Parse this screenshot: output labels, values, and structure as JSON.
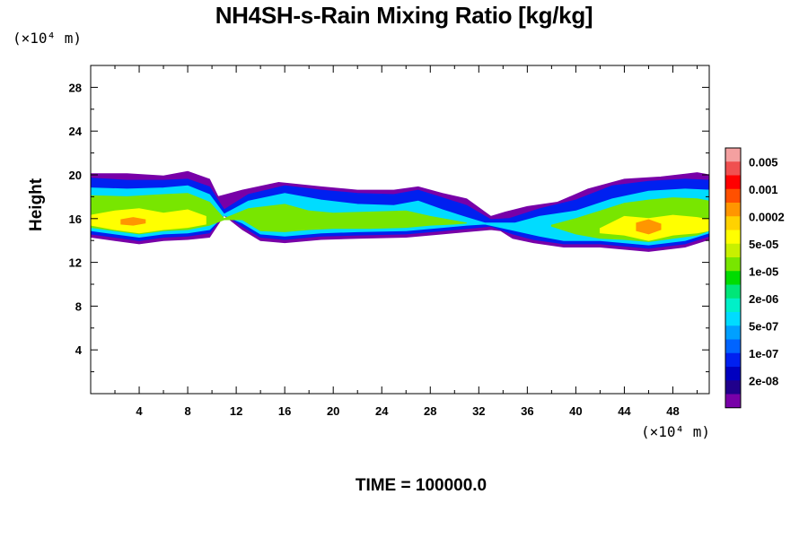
{
  "chart_data": {
    "type": "heatmap",
    "title": "NH4SH-s-Rain Mixing Ratio [kg/kg]",
    "xlabel": "",
    "ylabel": "Height",
    "x_unit_label": "(×10⁴ m)",
    "y_unit_label": "(×10⁴ m)",
    "xlim": [
      0,
      51
    ],
    "ylim": [
      0,
      30
    ],
    "x_ticks": [
      4,
      8,
      12,
      16,
      20,
      24,
      28,
      32,
      36,
      40,
      44,
      48
    ],
    "x_tick_labels": [
      "4",
      "8",
      "12",
      "16",
      "20",
      "24",
      "28",
      "32",
      "36",
      "40",
      "44",
      "48"
    ],
    "y_ticks": [
      4,
      8,
      12,
      16,
      20,
      24,
      28
    ],
    "y_tick_labels": [
      "4",
      "8",
      "12",
      "16",
      "20",
      "24",
      "28"
    ],
    "colorbar": {
      "colors": [
        "#f4a0a0",
        "#f05050",
        "#ff0000",
        "#ff5000",
        "#ff9600",
        "#ffd200",
        "#ffff00",
        "#c8f000",
        "#78e600",
        "#00dc00",
        "#00e678",
        "#00f0c8",
        "#00dcff",
        "#00a0ff",
        "#0064ff",
        "#0020f0",
        "#0000c0",
        "#20008c",
        "#7800a8"
      ],
      "labels": [
        "0.005",
        "0.001",
        "0.0002",
        "5e-05",
        "1e-05",
        "2e-06",
        "5e-07",
        "1e-07",
        "2e-08"
      ],
      "label_positions": [
        1,
        3,
        5,
        7,
        9,
        11,
        13,
        15,
        17
      ]
    },
    "layers": [
      {
        "level": "2e-08",
        "color": "#7800a8",
        "upper": [
          [
            0,
            20.1
          ],
          [
            3,
            20.1
          ],
          [
            6,
            19.9
          ],
          [
            8,
            20.3
          ],
          [
            9.8,
            19.6
          ],
          [
            10.5,
            18.0
          ],
          [
            12.5,
            18.6
          ],
          [
            15.5,
            19.3
          ],
          [
            19,
            18.9
          ],
          [
            22,
            18.6
          ],
          [
            25,
            18.6
          ],
          [
            27,
            18.9
          ],
          [
            29,
            18.3
          ],
          [
            31,
            17.8
          ],
          [
            33,
            16.2
          ],
          [
            34.2,
            16.6
          ],
          [
            36,
            17.1
          ],
          [
            38.5,
            17.5
          ],
          [
            41,
            18.7
          ],
          [
            44,
            19.6
          ],
          [
            47,
            19.8
          ],
          [
            50,
            20.2
          ],
          [
            51,
            20.0
          ]
        ],
        "lower": [
          [
            0,
            14.3
          ],
          [
            2,
            14.0
          ],
          [
            4,
            13.7
          ],
          [
            6,
            14.0
          ],
          [
            8,
            14.1
          ],
          [
            9.8,
            14.3
          ],
          [
            11,
            16.3
          ],
          [
            12.5,
            15.0
          ],
          [
            14,
            14.0
          ],
          [
            16,
            13.8
          ],
          [
            19,
            14.1
          ],
          [
            22,
            14.2
          ],
          [
            26,
            14.3
          ],
          [
            29,
            14.6
          ],
          [
            31,
            14.8
          ],
          [
            33,
            15.0
          ],
          [
            33.8,
            14.9
          ],
          [
            34.8,
            14.2
          ],
          [
            36.5,
            13.8
          ],
          [
            39,
            13.4
          ],
          [
            42,
            13.4
          ],
          [
            46,
            13.0
          ],
          [
            49,
            13.4
          ],
          [
            51,
            14.1
          ]
        ]
      },
      {
        "level": "1e-07",
        "color": "#0020f0",
        "upper": [
          [
            0,
            19.7
          ],
          [
            3,
            19.5
          ],
          [
            6,
            19.5
          ],
          [
            8,
            19.6
          ],
          [
            9.8,
            18.9
          ],
          [
            11,
            16.8
          ],
          [
            13,
            18.2
          ],
          [
            16,
            19.0
          ],
          [
            19,
            18.6
          ],
          [
            22,
            18.3
          ],
          [
            25,
            18.2
          ],
          [
            27,
            18.6
          ],
          [
            29,
            17.9
          ],
          [
            31,
            17.2
          ],
          [
            33,
            15.9
          ],
          [
            34.5,
            16.0
          ],
          [
            37,
            16.9
          ],
          [
            40,
            17.7
          ],
          [
            43,
            19.0
          ],
          [
            46,
            19.4
          ],
          [
            49,
            19.6
          ],
          [
            51,
            19.5
          ]
        ],
        "lower": [
          [
            0,
            14.6
          ],
          [
            2,
            14.3
          ],
          [
            4,
            14.0
          ],
          [
            6,
            14.3
          ],
          [
            8,
            14.4
          ],
          [
            9.8,
            14.7
          ],
          [
            11,
            16.4
          ],
          [
            12.5,
            15.3
          ],
          [
            14,
            14.3
          ],
          [
            16,
            14.1
          ],
          [
            19,
            14.4
          ],
          [
            22,
            14.5
          ],
          [
            26,
            14.6
          ],
          [
            29,
            14.9
          ],
          [
            31,
            15.1
          ],
          [
            33,
            15.3
          ],
          [
            34.8,
            14.6
          ],
          [
            36.5,
            14.1
          ],
          [
            39,
            13.7
          ],
          [
            42,
            13.7
          ],
          [
            46,
            13.3
          ],
          [
            49,
            13.7
          ],
          [
            51,
            14.4
          ]
        ]
      },
      {
        "level": "5e-07",
        "color": "#00dcff",
        "upper": [
          [
            0,
            18.8
          ],
          [
            3,
            18.7
          ],
          [
            6,
            18.8
          ],
          [
            8,
            19.0
          ],
          [
            9.8,
            18.2
          ],
          [
            11,
            16.4
          ],
          [
            13,
            17.6
          ],
          [
            16,
            18.3
          ],
          [
            19,
            17.7
          ],
          [
            22,
            17.3
          ],
          [
            25,
            17.2
          ],
          [
            27,
            17.6
          ],
          [
            29,
            16.8
          ],
          [
            31,
            16.1
          ],
          [
            32.5,
            15.6
          ],
          [
            35,
            15.6
          ],
          [
            37,
            16.2
          ],
          [
            40,
            16.7
          ],
          [
            43,
            17.8
          ],
          [
            46,
            18.5
          ],
          [
            49,
            18.7
          ],
          [
            51,
            18.6
          ]
        ],
        "lower": [
          [
            0,
            14.9
          ],
          [
            2,
            14.6
          ],
          [
            4,
            14.3
          ],
          [
            6,
            14.6
          ],
          [
            8,
            14.7
          ],
          [
            9.8,
            15.0
          ],
          [
            11,
            16.3
          ],
          [
            12.5,
            15.6
          ],
          [
            14,
            14.6
          ],
          [
            16,
            14.4
          ],
          [
            19,
            14.7
          ],
          [
            22,
            14.8
          ],
          [
            26,
            14.9
          ],
          [
            29,
            15.2
          ],
          [
            31,
            15.4
          ],
          [
            32.5,
            15.5
          ],
          [
            35,
            14.9
          ],
          [
            37,
            14.4
          ],
          [
            39,
            14.0
          ],
          [
            42,
            14.0
          ],
          [
            46,
            13.6
          ],
          [
            49,
            14.0
          ],
          [
            51,
            14.7
          ]
        ]
      },
      {
        "level": "1e-05",
        "color": "#78e600",
        "upper": [
          [
            0,
            18.1
          ],
          [
            3,
            18.0
          ],
          [
            6,
            18.2
          ],
          [
            8,
            18.3
          ],
          [
            9.8,
            17.5
          ],
          [
            11,
            16.0
          ],
          [
            13,
            16.9
          ],
          [
            16,
            17.3
          ],
          [
            18,
            16.7
          ],
          [
            20,
            16.5
          ],
          [
            23,
            16.6
          ],
          [
            26,
            16.7
          ],
          [
            28,
            16.2
          ],
          [
            30,
            15.8
          ],
          [
            31,
            15.6
          ]
        ],
        "lower": [
          [
            0,
            15.2
          ],
          [
            2,
            14.9
          ],
          [
            4,
            14.6
          ],
          [
            6,
            14.9
          ],
          [
            8,
            15.0
          ],
          [
            9.8,
            15.4
          ],
          [
            11,
            15.9
          ],
          [
            12.5,
            15.9
          ],
          [
            14,
            14.9
          ],
          [
            16,
            14.8
          ],
          [
            18,
            15.0
          ],
          [
            20,
            15.1
          ],
          [
            23,
            15.1
          ],
          [
            26,
            15.2
          ],
          [
            28,
            15.4
          ],
          [
            30,
            15.5
          ],
          [
            31,
            15.6
          ]
        ]
      },
      {
        "level": "1e-05",
        "color": "#78e600",
        "upper": [
          [
            38,
            15.4
          ],
          [
            40,
            16.0
          ],
          [
            42,
            16.7
          ],
          [
            44,
            17.4
          ],
          [
            46,
            17.7
          ],
          [
            48,
            17.9
          ],
          [
            50,
            17.8
          ],
          [
            51,
            17.6
          ]
        ],
        "lower": [
          [
            38,
            15.3
          ],
          [
            40,
            14.6
          ],
          [
            42,
            14.2
          ],
          [
            44,
            14.1
          ],
          [
            46,
            13.9
          ],
          [
            48,
            14.2
          ],
          [
            50,
            14.5
          ],
          [
            51,
            14.9
          ]
        ]
      },
      {
        "level": "5e-05",
        "color": "#ffff00",
        "upper": [
          [
            0,
            16.3
          ],
          [
            2,
            16.7
          ],
          [
            4,
            16.9
          ],
          [
            6,
            16.5
          ],
          [
            8,
            16.8
          ],
          [
            9.5,
            16.2
          ]
        ],
        "lower": [
          [
            0,
            15.4
          ],
          [
            2,
            15.0
          ],
          [
            4,
            14.7
          ],
          [
            6,
            15.0
          ],
          [
            8,
            15.2
          ],
          [
            9.5,
            15.5
          ]
        ]
      },
      {
        "level": "5e-05",
        "color": "#ffff00",
        "upper": [
          [
            42,
            15.1
          ],
          [
            44,
            16.2
          ],
          [
            46,
            16.0
          ],
          [
            48,
            16.3
          ],
          [
            50,
            16.1
          ],
          [
            51,
            15.9
          ]
        ],
        "lower": [
          [
            42,
            14.7
          ],
          [
            44,
            14.5
          ],
          [
            46,
            14.0
          ],
          [
            48,
            14.5
          ],
          [
            50,
            14.7
          ],
          [
            51,
            14.9
          ]
        ]
      },
      {
        "level": "0.0002",
        "color": "#ff9600",
        "upper": [
          [
            2.5,
            15.9
          ],
          [
            3.5,
            16.1
          ],
          [
            4.5,
            15.9
          ]
        ],
        "lower": [
          [
            2.5,
            15.5
          ],
          [
            3.5,
            15.4
          ],
          [
            4.5,
            15.6
          ]
        ]
      },
      {
        "level": "0.0002",
        "color": "#ff9600",
        "upper": [
          [
            45,
            15.6
          ],
          [
            46,
            15.9
          ],
          [
            47,
            15.5
          ]
        ],
        "lower": [
          [
            45,
            14.9
          ],
          [
            46,
            14.6
          ],
          [
            47,
            15.0
          ]
        ]
      }
    ]
  },
  "time_label": "TIME = 100000.0"
}
